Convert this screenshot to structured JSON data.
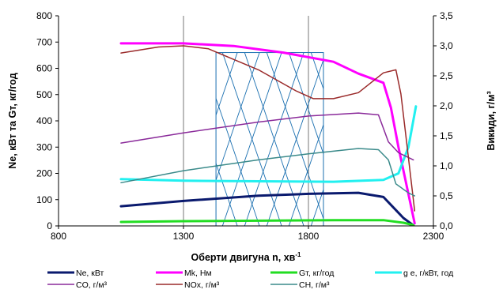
{
  "chart_data": {
    "type": "line",
    "xlabel_main": "Оберти двигуна n, хв",
    "xlabel_sup": "-1",
    "ylabel_left": "Ne, кВт та Gт, кг/год",
    "ylabel_right": "Викиди, г/м³",
    "xlim": [
      800,
      2300
    ],
    "ylim_left": [
      0,
      800
    ],
    "ylim_right": [
      0,
      3.5
    ],
    "x_ticks": [
      "800",
      "1300",
      "1800",
      "2300"
    ],
    "x_tick_values": [
      800,
      1300,
      1800,
      2300
    ],
    "y_left_ticks": [
      "0",
      "100",
      "200",
      "300",
      "400",
      "500",
      "600",
      "700",
      "800"
    ],
    "y_left_tick_values": [
      0,
      100,
      200,
      300,
      400,
      500,
      600,
      700,
      800
    ],
    "y_right_ticks": [
      "0,0",
      "0,5",
      "1,0",
      "1,5",
      "2,0",
      "2,5",
      "3,0",
      "3,5"
    ],
    "y_right_tick_values": [
      0,
      0.5,
      1.0,
      1.5,
      2.0,
      2.5,
      3.0,
      3.5
    ],
    "grid": "vertical",
    "shaded_region_x": [
      1430,
      1860
    ],
    "series": [
      {
        "name": "Ne, кВт",
        "axis": "left",
        "color": "#0a1a6e",
        "width": 3,
        "x": [
          1050,
          1300,
          1600,
          1800,
          2000,
          2100,
          2180,
          2220
        ],
        "y": [
          75,
          95,
          115,
          122,
          126,
          110,
          30,
          2
        ]
      },
      {
        "name": "Mk, Нм",
        "axis": "left",
        "color": "#ff00ff",
        "width": 3,
        "x": [
          1050,
          1300,
          1500,
          1700,
          1900,
          2000,
          2100,
          2130,
          2160,
          2225
        ],
        "y": [
          695,
          695,
          685,
          660,
          625,
          580,
          545,
          450,
          300,
          10
        ]
      },
      {
        "name": "Gт, кг/год",
        "axis": "left",
        "color": "#22dd22",
        "width": 3,
        "x": [
          1050,
          1300,
          1600,
          1900,
          2100,
          2180,
          2220
        ],
        "y": [
          15,
          18,
          20,
          22,
          22,
          12,
          3
        ]
      },
      {
        "name": "g e, г/кВт, год",
        "axis": "left",
        "color": "#22f0f0",
        "width": 3,
        "x": [
          1050,
          1300,
          1600,
          1900,
          2100,
          2160,
          2200,
          2230
        ],
        "y": [
          178,
          172,
          170,
          168,
          175,
          200,
          300,
          455
        ]
      },
      {
        "name": "CO, г/м³",
        "axis": "right",
        "color": "#8a2a9a",
        "width": 1.5,
        "x": [
          1050,
          1300,
          1600,
          1800,
          2000,
          2080,
          2120,
          2160,
          2220
        ],
        "y": [
          1.38,
          1.55,
          1.73,
          1.83,
          1.88,
          1.85,
          1.4,
          1.22,
          1.1
        ]
      },
      {
        "name": "NOx, г/м³",
        "axis": "right",
        "color": "#9a2a2a",
        "width": 1.5,
        "x": [
          1050,
          1200,
          1300,
          1400,
          1600,
          1750,
          1820,
          1900,
          2000,
          2100,
          2150,
          2170,
          2190,
          2225
        ],
        "y": [
          2.88,
          2.98,
          3.0,
          2.95,
          2.6,
          2.25,
          2.12,
          2.12,
          2.22,
          2.55,
          2.6,
          2.2,
          1.5,
          0.25
        ]
      },
      {
        "name": "CH, г/м³",
        "axis": "right",
        "color": "#3a8a8a",
        "width": 1.5,
        "x": [
          1050,
          1300,
          1600,
          1800,
          2000,
          2080,
          2120,
          2150,
          2200,
          2225
        ],
        "y": [
          0.72,
          0.92,
          1.1,
          1.2,
          1.29,
          1.27,
          1.1,
          0.7,
          0.55,
          0.5
        ]
      }
    ]
  }
}
